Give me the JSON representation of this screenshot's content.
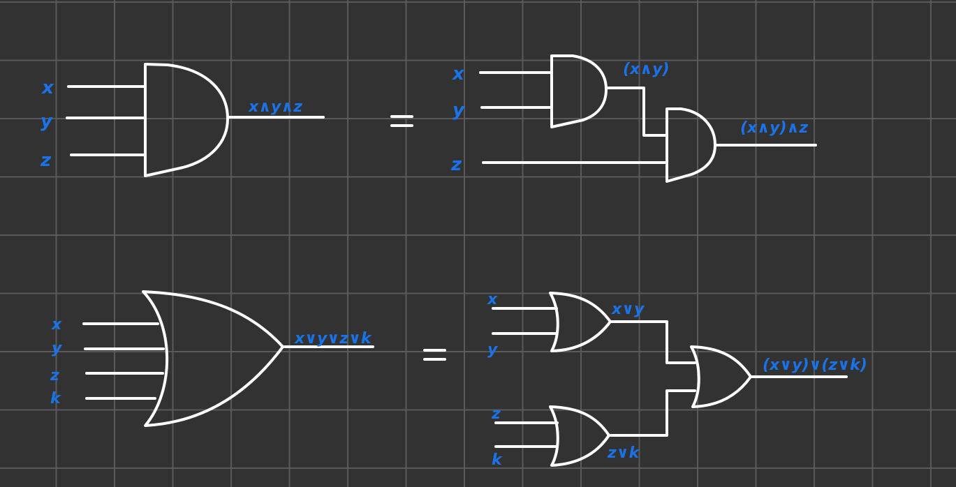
{
  "and_section": {
    "left": {
      "inputs": [
        "x",
        "y",
        "z"
      ],
      "output": "x∧y∧z"
    },
    "right": {
      "inputs": [
        "x",
        "y",
        "z"
      ],
      "intermediate": "(x∧y)",
      "output": "(x∧y)∧z"
    }
  },
  "or_section": {
    "left": {
      "inputs": [
        "x",
        "y",
        "z",
        "k"
      ],
      "output": "x∨y∨z∨k"
    },
    "right": {
      "inputs": [
        "x",
        "y",
        "z",
        "k"
      ],
      "intermediate_top": "x∨y",
      "intermediate_bottom": "z∨k",
      "output": "(x∨y)∨(z∨k)"
    }
  },
  "colors": {
    "background": "#323232",
    "grid": "#5a5a5a",
    "ink": "#ffffff",
    "label": "#1a73e8"
  }
}
